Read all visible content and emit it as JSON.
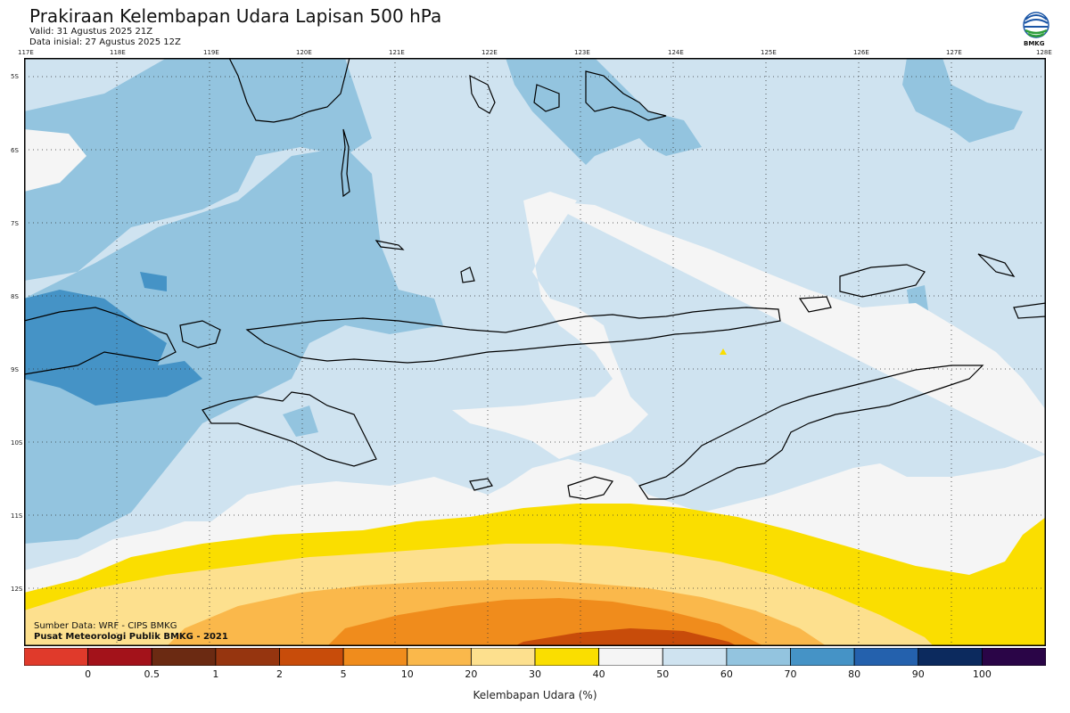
{
  "header": {
    "title": "Prakiraan Kelembapan Udara Lapisan 500 hPa",
    "valid": "Valid: 31 Agustus 2025 21Z",
    "init": "Data inisial: 27 Agustus 2025 12Z"
  },
  "logo": {
    "text": "BMKG"
  },
  "axes": {
    "lon_labels": [
      "117E",
      "118E",
      "119E",
      "120E",
      "121E",
      "122E",
      "123E",
      "124E",
      "125E",
      "126E",
      "127E",
      "128E"
    ],
    "lat_labels": [
      "5S",
      "6S",
      "7S",
      "8S",
      "9S",
      "10S",
      "11S",
      "12S"
    ]
  },
  "credit": {
    "source": "Sumber Data: WRF - CIPS BMKG",
    "org": "Pusat Meteorologi Publik BMKG - 2021"
  },
  "colorbar": {
    "title": "Kelembapan Udara (%)",
    "labels": [
      "0",
      "0.5",
      "1",
      "2",
      "5",
      "10",
      "20",
      "30",
      "40",
      "50",
      "60",
      "70",
      "80",
      "90",
      "100"
    ],
    "colors": [
      "#e03a2b",
      "#a3121a",
      "#6b2a12",
      "#96350f",
      "#c84c0a",
      "#f08c1c",
      "#fab84b",
      "#fde08e",
      "#fade00",
      "#f5f5f5",
      "#cfe3f0",
      "#93c4df",
      "#4593c6",
      "#2461ad",
      "#0c2a5e",
      "#2a0547"
    ]
  },
  "map_colors": {
    "land_outline": "#000000",
    "humidity_40_50": "#f5f5f5",
    "humidity_50_60": "#cfe3f0",
    "humidity_60_70": "#93c4df",
    "humidity_70_80": "#4593c6",
    "humidity_30_40": "#fade00",
    "humidity_20_30": "#fde08e",
    "humidity_10_20": "#fab84b",
    "humidity_5_10": "#f08c1c",
    "humidity_2_5": "#c84c0a"
  }
}
